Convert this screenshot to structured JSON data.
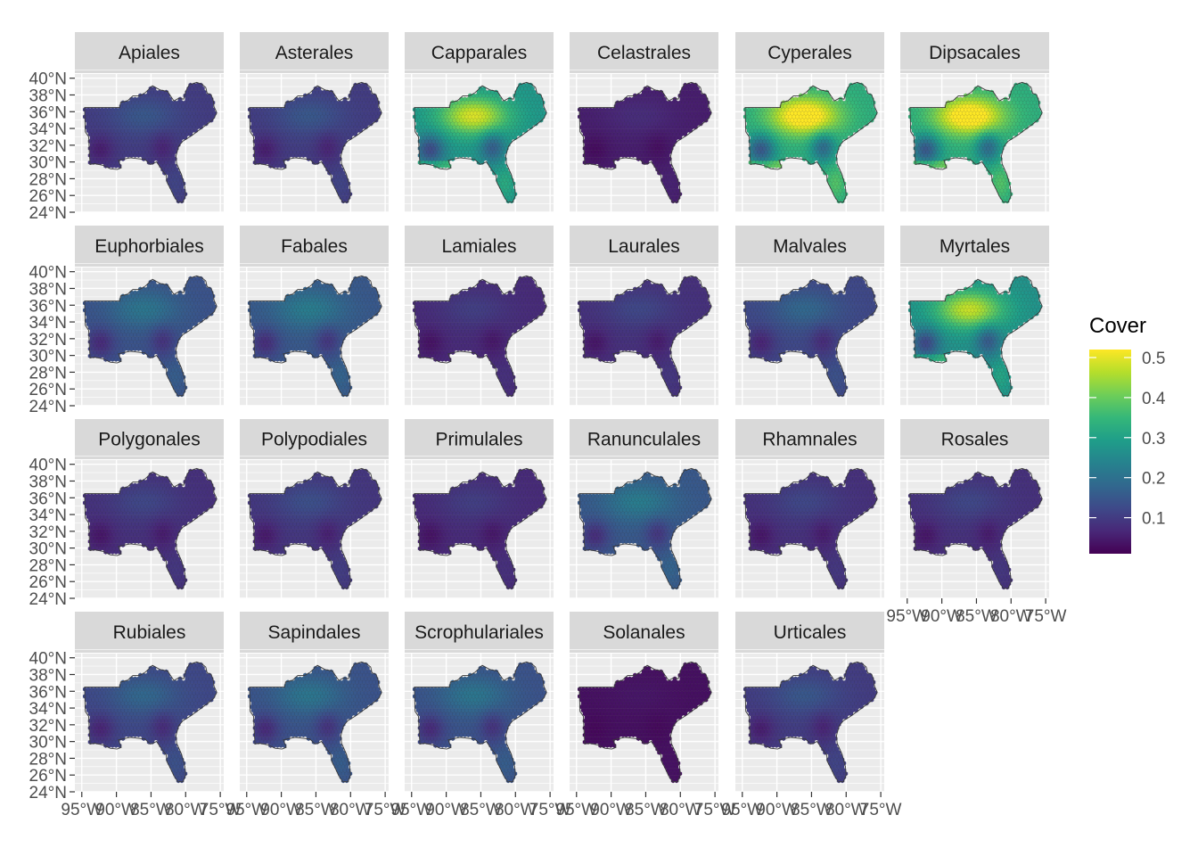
{
  "chart_data": {
    "type": "heatmap",
    "title": "",
    "xlabel": "",
    "ylabel": "",
    "facets": [
      {
        "name": "Apiales",
        "mean": 0.1,
        "pattern": "moderate"
      },
      {
        "name": "Asterales",
        "mean": 0.1,
        "pattern": "moderate"
      },
      {
        "name": "Capparales",
        "mean": 0.28,
        "pattern": "high-north"
      },
      {
        "name": "Celastrales",
        "mean": 0.05,
        "pattern": "low"
      },
      {
        "name": "Cyperales",
        "mean": 0.33,
        "pattern": "high"
      },
      {
        "name": "Dipsacales",
        "mean": 0.33,
        "pattern": "high"
      },
      {
        "name": "Euphorbiales",
        "mean": 0.14,
        "pattern": "moderate"
      },
      {
        "name": "Fabales",
        "mean": 0.15,
        "pattern": "moderate"
      },
      {
        "name": "Lamiales",
        "mean": 0.07,
        "pattern": "low"
      },
      {
        "name": "Laurales",
        "mean": 0.08,
        "pattern": "low"
      },
      {
        "name": "Malvales",
        "mean": 0.12,
        "pattern": "moderate"
      },
      {
        "name": "Myrtales",
        "mean": 0.27,
        "pattern": "high-north"
      },
      {
        "name": "Polygonales",
        "mean": 0.08,
        "pattern": "low"
      },
      {
        "name": "Polypodiales",
        "mean": 0.09,
        "pattern": "low"
      },
      {
        "name": "Primulales",
        "mean": 0.07,
        "pattern": "low"
      },
      {
        "name": "Ranunculales",
        "mean": 0.15,
        "pattern": "moderate"
      },
      {
        "name": "Rhamnales",
        "mean": 0.08,
        "pattern": "low"
      },
      {
        "name": "Rosales",
        "mean": 0.08,
        "pattern": "low"
      },
      {
        "name": "Rubiales",
        "mean": 0.12,
        "pattern": "moderate"
      },
      {
        "name": "Sapindales",
        "mean": 0.14,
        "pattern": "moderate"
      },
      {
        "name": "Scrophulariales",
        "mean": 0.14,
        "pattern": "moderate"
      },
      {
        "name": "Solanales",
        "mean": 0.03,
        "pattern": "very-low"
      },
      {
        "name": "Urticales",
        "mean": 0.1,
        "pattern": "moderate"
      }
    ],
    "y_ticks": [
      "40°N",
      "38°N",
      "36°N",
      "34°N",
      "32°N",
      "30°N",
      "28°N",
      "26°N",
      "24°N"
    ],
    "y_tick_values": [
      40,
      38,
      36,
      34,
      32,
      30,
      28,
      26,
      24
    ],
    "x_ticks": [
      "95°W",
      "90°W",
      "85°W",
      "80°W",
      "75°W"
    ],
    "x_tick_values": [
      -95,
      -90,
      -85,
      -80,
      -75
    ],
    "xlim": [
      -96,
      -74.5
    ],
    "ylim": [
      24,
      40.5
    ],
    "grid": true,
    "legend": {
      "title": "Cover",
      "position": "right",
      "breaks": [
        "0.5",
        "0.4",
        "0.3",
        "0.2",
        "0.1"
      ],
      "break_values": [
        0.5,
        0.4,
        0.3,
        0.2,
        0.1
      ],
      "range": [
        0.01,
        0.52
      ],
      "palette": [
        "#440154",
        "#482878",
        "#3e4989",
        "#31688e",
        "#26828e",
        "#1f9e89",
        "#35b779",
        "#6ece58",
        "#b5de2b",
        "#fde725"
      ]
    },
    "colors": {
      "panel_bg": "#ebebeb",
      "grid": "#ffffff",
      "strip_bg": "#d9d9d9",
      "border": "#3a3a3a"
    }
  }
}
